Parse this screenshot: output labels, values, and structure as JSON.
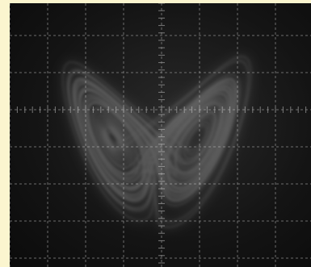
{
  "image": {
    "subject": "oscilloscope-screen",
    "colors": {
      "background": "#fbf5cf",
      "screen": "#111111",
      "grid": "#8a8a8a",
      "trace": "#f2f2f2"
    }
  }
}
